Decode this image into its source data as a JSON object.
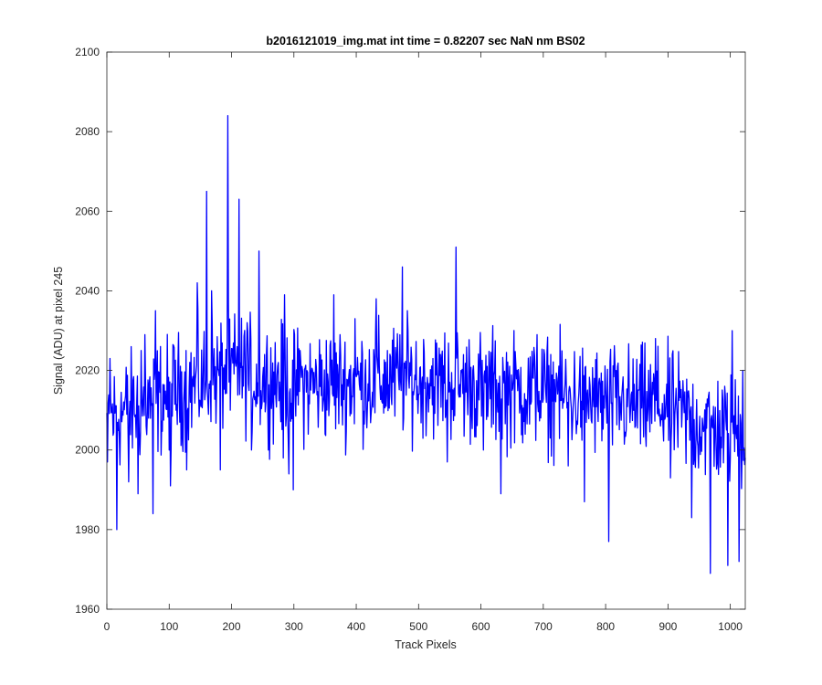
{
  "chart_data": {
    "type": "line",
    "title": "b2016121019_img.mat int time = 0.82207 sec  NaN nm BS02",
    "xlabel": "Track Pixels",
    "ylabel": "Signal (ADU) at pixel 245",
    "xlim": [
      0,
      1024
    ],
    "ylim": [
      1960,
      2100
    ],
    "xticks": [
      0,
      100,
      200,
      300,
      400,
      500,
      600,
      700,
      800,
      900,
      1000
    ],
    "yticks": [
      1960,
      1980,
      2000,
      2020,
      2040,
      2060,
      2080,
      2100
    ],
    "grid": false,
    "box": true,
    "series": [
      {
        "color": "#0000ff",
        "baseline": 2015,
        "noise_amplitude": 7,
        "trend": [
          [
            0,
            2008
          ],
          [
            100,
            2014
          ],
          [
            200,
            2020
          ],
          [
            300,
            2016
          ],
          [
            400,
            2017
          ],
          [
            500,
            2018
          ],
          [
            600,
            2016
          ],
          [
            700,
            2014
          ],
          [
            800,
            2012
          ],
          [
            900,
            2011
          ],
          [
            950,
            2006
          ],
          [
            1024,
            2004
          ]
        ],
        "key_points": [
          {
            "x": 1,
            "y": 1997
          },
          {
            "x": 5,
            "y": 2023
          },
          {
            "x": 16,
            "y": 1980
          },
          {
            "x": 35,
            "y": 1992
          },
          {
            "x": 50,
            "y": 1989
          },
          {
            "x": 55,
            "y": 2025
          },
          {
            "x": 61,
            "y": 2029
          },
          {
            "x": 74,
            "y": 1984
          },
          {
            "x": 78,
            "y": 2035
          },
          {
            "x": 100,
            "y": 2000
          },
          {
            "x": 102,
            "y": 1991
          },
          {
            "x": 128,
            "y": 1995
          },
          {
            "x": 145,
            "y": 2042
          },
          {
            "x": 160,
            "y": 2065
          },
          {
            "x": 168,
            "y": 2040
          },
          {
            "x": 182,
            "y": 1995
          },
          {
            "x": 194,
            "y": 2084
          },
          {
            "x": 198,
            "y": 2010
          },
          {
            "x": 212,
            "y": 2063
          },
          {
            "x": 225,
            "y": 2032
          },
          {
            "x": 232,
            "y": 2000
          },
          {
            "x": 244,
            "y": 2050
          },
          {
            "x": 255,
            "y": 2012
          },
          {
            "x": 275,
            "y": 2022
          },
          {
            "x": 283,
            "y": 1998
          },
          {
            "x": 285,
            "y": 2039
          },
          {
            "x": 292,
            "y": 1994
          },
          {
            "x": 299,
            "y": 1990
          },
          {
            "x": 310,
            "y": 2025
          },
          {
            "x": 330,
            "y": 2020
          },
          {
            "x": 364,
            "y": 2039
          },
          {
            "x": 398,
            "y": 2033
          },
          {
            "x": 432,
            "y": 2038
          },
          {
            "x": 474,
            "y": 2046
          },
          {
            "x": 483,
            "y": 2030
          },
          {
            "x": 501,
            "y": 2014
          },
          {
            "x": 530,
            "y": 2018
          },
          {
            "x": 546,
            "y": 1997
          },
          {
            "x": 560,
            "y": 2051
          },
          {
            "x": 604,
            "y": 2000
          },
          {
            "x": 632,
            "y": 1989
          },
          {
            "x": 650,
            "y": 2015
          },
          {
            "x": 690,
            "y": 2029
          },
          {
            "x": 722,
            "y": 2018
          },
          {
            "x": 740,
            "y": 1996
          },
          {
            "x": 766,
            "y": 1987
          },
          {
            "x": 790,
            "y": 2018
          },
          {
            "x": 805,
            "y": 1977
          },
          {
            "x": 840,
            "y": 2010
          },
          {
            "x": 880,
            "y": 2028
          },
          {
            "x": 904,
            "y": 1993
          },
          {
            "x": 938,
            "y": 1983
          },
          {
            "x": 955,
            "y": 2008
          },
          {
            "x": 968,
            "y": 1969
          },
          {
            "x": 996,
            "y": 1971
          },
          {
            "x": 1003,
            "y": 2030
          },
          {
            "x": 1014,
            "y": 1972
          },
          {
            "x": 1020,
            "y": 2020
          },
          {
            "x": 1024,
            "y": 1998
          }
        ]
      }
    ]
  }
}
